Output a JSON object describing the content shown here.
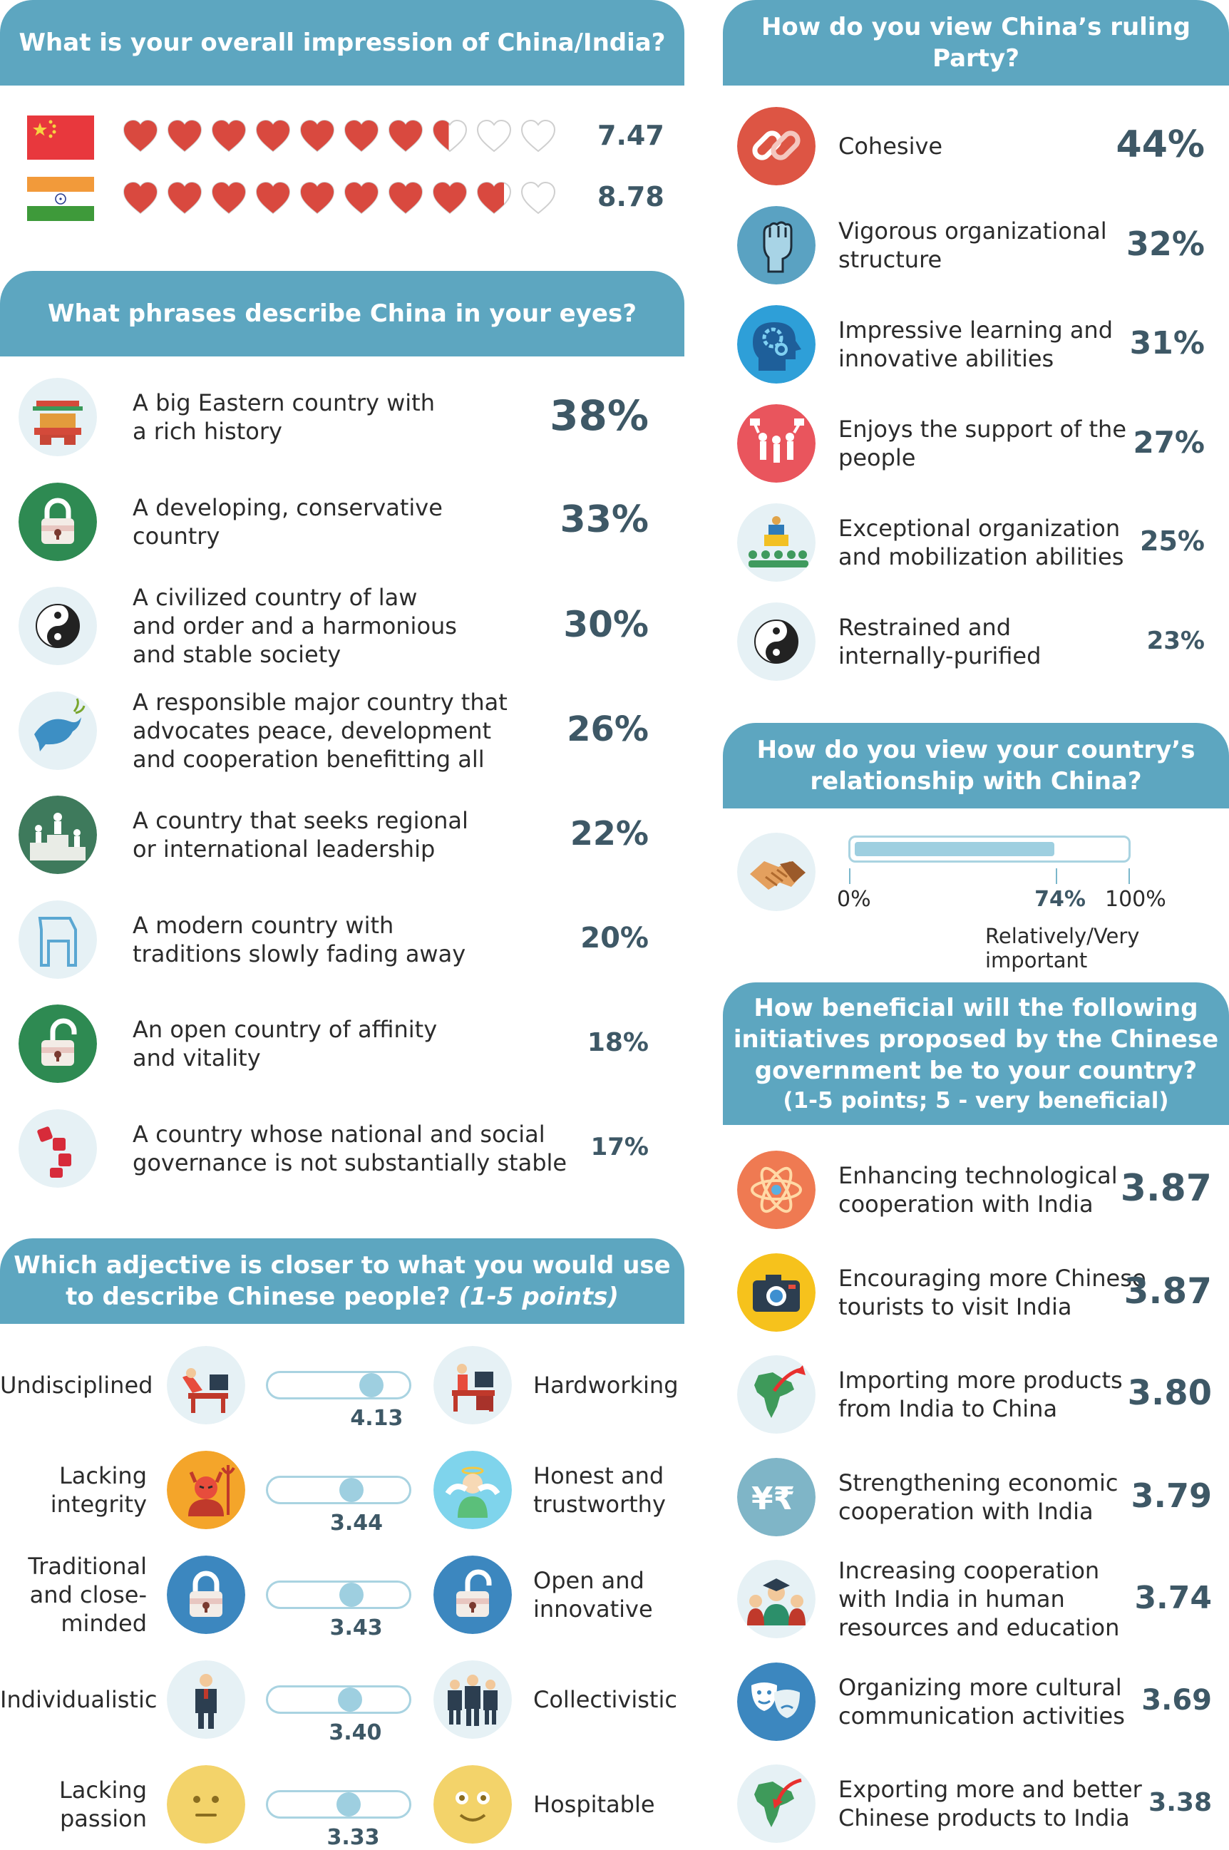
{
  "impression": {
    "title": "What is your overall impression of China/India?",
    "china": {
      "flag": "china-flag",
      "score": "7.47",
      "hearts_filled": 7.47
    },
    "india": {
      "flag": "india-flag",
      "score": "8.78",
      "hearts_filled": 8.78
    },
    "heart_color": "#d9493f"
  },
  "phrases": {
    "title": "What phrases describe China in your eyes?",
    "items": [
      {
        "text": "A big Eastern country with\na rich history",
        "pct": "38%",
        "icon": "pagoda-gate-icon"
      },
      {
        "text": "A developing, conservative\ncountry",
        "pct": "33%",
        "icon": "padlock-closed-icon"
      },
      {
        "text": "A civilized country of law\nand order and a harmonious\nand stable society",
        "pct": "30%",
        "icon": "yin-yang-icon"
      },
      {
        "text": "A responsible major country that\nadvocates peace, development\nand cooperation benefitting all",
        "pct": "26%",
        "icon": "peace-dove-icon"
      },
      {
        "text": "A country that seeks regional\nor international leadership",
        "pct": "22%",
        "icon": "podium-icon"
      },
      {
        "text": "A modern country with\ntraditions slowly fading away",
        "pct": "20%",
        "icon": "modern-building-icon"
      },
      {
        "text": "An open country of affinity\nand vitality",
        "pct": "18%",
        "icon": "padlock-open-icon"
      },
      {
        "text": "A country whose national and social\ngovernance is not substantially stable",
        "pct": "17%",
        "icon": "falling-blocks-icon"
      }
    ]
  },
  "adjectives": {
    "title_main": "Which adjective is closer to what you would use",
    "title_line2": "to describe Chinese people?",
    "title_note": "(1-5 points)",
    "items": [
      {
        "left": "Undisciplined",
        "right": "Hardworking",
        "value": "4.13",
        "score": 4.13,
        "left_icon": "lazy-worker-icon",
        "right_icon": "hard-worker-icon"
      },
      {
        "left": "Lacking\nintegrity",
        "right": "Honest and\ntrustworthy",
        "value": "3.44",
        "score": 3.44,
        "left_icon": "devil-icon",
        "right_icon": "angel-icon"
      },
      {
        "left": "Traditional\nand close-\nminded",
        "right": "Open and\ninnovative",
        "value": "3.43",
        "score": 3.43,
        "left_icon": "padlock-closed-icon",
        "right_icon": "padlock-open-icon"
      },
      {
        "left": "Individualistic",
        "right": "Collectivistic",
        "value": "3.40",
        "score": 3.4,
        "left_icon": "single-person-icon",
        "right_icon": "group-people-icon"
      },
      {
        "left": "Lacking\npassion",
        "right": "Hospitable",
        "value": "3.33",
        "score": 3.33,
        "left_icon": "neutral-face-icon",
        "right_icon": "smiling-face-icon"
      }
    ]
  },
  "party": {
    "title": "How do you view China’s ruling Party?",
    "items": [
      {
        "text": "Cohesive",
        "pct": "44%",
        "icon": "chain-link-icon"
      },
      {
        "text": "Vigorous organizational\nstructure",
        "pct": "32%",
        "icon": "raised-fist-icon"
      },
      {
        "text": "Impressive learning and\ninnovative abilities",
        "pct": "31%",
        "icon": "gear-head-icon"
      },
      {
        "text": "Enjoys the support of the\npeople",
        "pct": "27%",
        "icon": "cheering-crowd-icon"
      },
      {
        "text": "Exceptional organization\nand mobilization abilities",
        "pct": "25%",
        "icon": "speaker-audience-icon"
      },
      {
        "text": "Restrained and\ninternally-purified",
        "pct": "23%",
        "icon": "yin-yang-icon"
      }
    ]
  },
  "relationship": {
    "title_line1": "How do you view your country’s",
    "title_line2": "relationship with China?",
    "icon": "handshake-icon",
    "value": 74,
    "label_min": "0%",
    "label_value": "74%",
    "label_max": "100%",
    "caption": "Relatively/Very important"
  },
  "initiatives": {
    "title_line1": "How beneficial will the following",
    "title_line2": "initiatives proposed by the Chinese",
    "title_line3": "government be to your country?",
    "title_note": "(1-5 points; 5 - very beneficial)",
    "items": [
      {
        "text": "Enhancing technological\ncooperation with India",
        "score": "3.87",
        "icon": "atom-icon"
      },
      {
        "text": "Encouraging more Chinese\ntourists to visit India",
        "score": "3.87",
        "icon": "camera-icon"
      },
      {
        "text": "Importing more products\nfrom India to China",
        "score": "3.80",
        "icon": "india-map-outbound-icon"
      },
      {
        "text": "Strengthening economic\ncooperation with India",
        "score": "3.79",
        "icon": "yen-rupee-icon"
      },
      {
        "text": "Increasing cooperation\nwith India in human\nresources and education",
        "score": "3.74",
        "icon": "graduates-icon"
      },
      {
        "text": "Organizing more cultural\ncommunication activities",
        "score": "3.69",
        "icon": "theater-masks-icon"
      },
      {
        "text": "Exporting more and better\nChinese products to India",
        "score": "3.38",
        "icon": "india-map-inbound-icon"
      }
    ]
  }
}
